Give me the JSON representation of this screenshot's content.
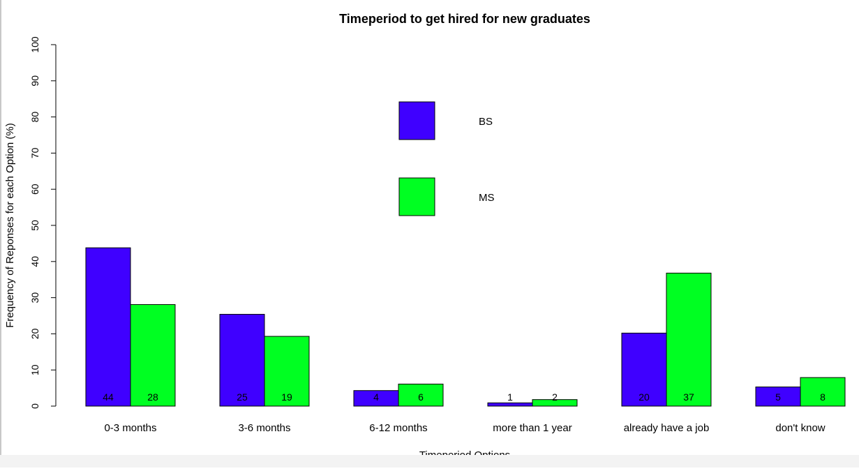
{
  "chart_data": {
    "type": "bar",
    "title": "Timeperiod to get hired for new graduates",
    "xlabel": "Timeperiod Options",
    "ylabel": "Frequency of Reponses for each Option (%)",
    "ylim": [
      0,
      100
    ],
    "yticks": [
      "0",
      "10",
      "20",
      "30",
      "40",
      "50",
      "60",
      "70",
      "80",
      "90",
      "100"
    ],
    "categories": [
      "0-3 months",
      "3-6 months",
      "6-12 months",
      "more than 1 year",
      "already have a job",
      "don't know"
    ],
    "series": [
      {
        "name": "BS",
        "color": "#3f00ff",
        "values": [
          43.8,
          25.4,
          4.3,
          0.9,
          20.2,
          5.3
        ],
        "labels": [
          "44",
          "25",
          "4",
          "1",
          "20",
          "5"
        ]
      },
      {
        "name": "MS",
        "color": "#00ff22",
        "values": [
          28.1,
          19.3,
          6.1,
          1.8,
          36.8,
          7.9
        ],
        "labels": [
          "28",
          "19",
          "6",
          "2",
          "37",
          "8"
        ]
      }
    ],
    "legend_position": "top-center",
    "grid": false
  }
}
